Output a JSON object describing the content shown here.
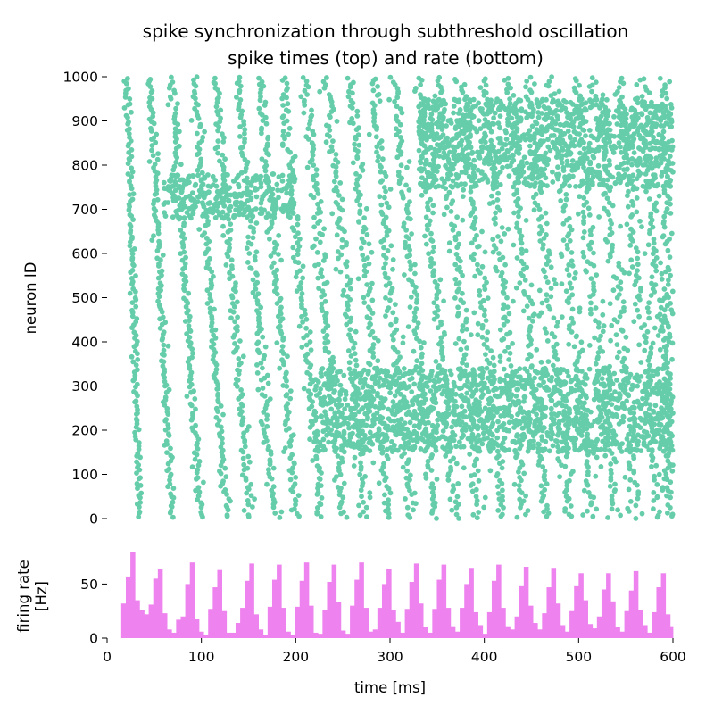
{
  "chart_data": {
    "type": "scatter",
    "title": "spike synchronization through subthreshold oscillation",
    "subtitle": "spike times (top) and rate (bottom)",
    "colors": {
      "spikes": "#66cdaa",
      "rate": "#ee82ee"
    },
    "raster": {
      "type": "scatter",
      "ylabel": "neuron ID",
      "xlim": [
        0,
        600
      ],
      "ylim": [
        0,
        1000
      ],
      "yticks": [
        "0",
        "100",
        "200",
        "300",
        "400",
        "500",
        "600",
        "700",
        "800",
        "900",
        "1000"
      ],
      "bursts": [
        {
          "t_top": 21,
          "t_bottom": 35,
          "spread": 3.5
        },
        {
          "t_top": 45,
          "t_bottom": 69,
          "spread": 4
        },
        {
          "t_top": 68,
          "t_bottom": 99,
          "spread": 4.5
        },
        {
          "t_top": 92,
          "t_bottom": 127,
          "spread": 5
        },
        {
          "t_top": 115,
          "t_bottom": 152,
          "spread": 5.5
        },
        {
          "t_top": 139,
          "t_bottom": 177,
          "spread": 6
        },
        {
          "t_top": 162,
          "t_bottom": 201,
          "spread": 6
        },
        {
          "t_top": 186,
          "t_bottom": 226,
          "spread": 6.5
        },
        {
          "t_top": 210,
          "t_bottom": 250,
          "spread": 6.5
        },
        {
          "t_top": 233,
          "t_bottom": 274,
          "spread": 7
        },
        {
          "t_top": 257,
          "t_bottom": 298,
          "spread": 7
        },
        {
          "t_top": 281,
          "t_bottom": 322,
          "spread": 7.5
        },
        {
          "t_top": 304,
          "t_bottom": 346,
          "spread": 7.5
        },
        {
          "t_top": 328,
          "t_bottom": 370,
          "spread": 8
        },
        {
          "t_top": 352,
          "t_bottom": 394,
          "spread": 8
        },
        {
          "t_top": 376,
          "t_bottom": 418,
          "spread": 8.5
        },
        {
          "t_top": 400,
          "t_bottom": 442,
          "spread": 8.5
        },
        {
          "t_top": 423,
          "t_bottom": 466,
          "spread": 9
        },
        {
          "t_top": 447,
          "t_bottom": 490,
          "spread": 9
        },
        {
          "t_top": 471,
          "t_bottom": 514,
          "spread": 9.5
        },
        {
          "t_top": 495,
          "t_bottom": 538,
          "spread": 9.5
        },
        {
          "t_top": 519,
          "t_bottom": 562,
          "spread": 10
        },
        {
          "t_top": 543,
          "t_bottom": 586,
          "spread": 10
        },
        {
          "t_top": 567,
          "t_bottom": 600,
          "spread": 10
        },
        {
          "t_top": 591,
          "t_bottom": 600,
          "spread": 10
        }
      ],
      "desync_regions": [
        {
          "neuron_range": [
            680,
            780
          ],
          "time_range": [
            60,
            200
          ]
        },
        {
          "neuron_range": [
            750,
            950
          ],
          "time_range": [
            330,
            600
          ]
        },
        {
          "neuron_range": [
            150,
            340
          ],
          "time_range": [
            220,
            600
          ]
        }
      ]
    },
    "rate": {
      "type": "bar",
      "ylabel": "firing rate\n[Hz]",
      "xlabel": "time [ms]",
      "xlim": [
        0,
        600
      ],
      "ylim": [
        0,
        85
      ],
      "yticks": [
        "0",
        "50"
      ],
      "xticks": [
        "0",
        "100",
        "200",
        "300",
        "400",
        "500",
        "600"
      ],
      "bin_width_ms": 5,
      "bin_start_ms": 15,
      "values": [
        32,
        57,
        80,
        35,
        26,
        22,
        31,
        55,
        64,
        23,
        8,
        5,
        17,
        20,
        50,
        70,
        18,
        6,
        3,
        27,
        47,
        63,
        25,
        5,
        5,
        14,
        28,
        53,
        69,
        22,
        8,
        3,
        29,
        54,
        68,
        28,
        6,
        3,
        29,
        53,
        70,
        30,
        5,
        4,
        26,
        52,
        68,
        33,
        7,
        4,
        30,
        54,
        70,
        28,
        6,
        8,
        28,
        50,
        64,
        26,
        15,
        5,
        27,
        52,
        69,
        32,
        10,
        5,
        27,
        54,
        68,
        28,
        11,
        6,
        28,
        50,
        65,
        24,
        12,
        4,
        24,
        53,
        68,
        28,
        11,
        8,
        20,
        48,
        66,
        30,
        14,
        8,
        23,
        47,
        65,
        32,
        12,
        6,
        25,
        48,
        60,
        35,
        13,
        9,
        20,
        45,
        60,
        34,
        10,
        6,
        25,
        44,
        62,
        26,
        12,
        5,
        24,
        47,
        60,
        22,
        11,
        8,
        18,
        52,
        58,
        33,
        14
      ]
    }
  }
}
